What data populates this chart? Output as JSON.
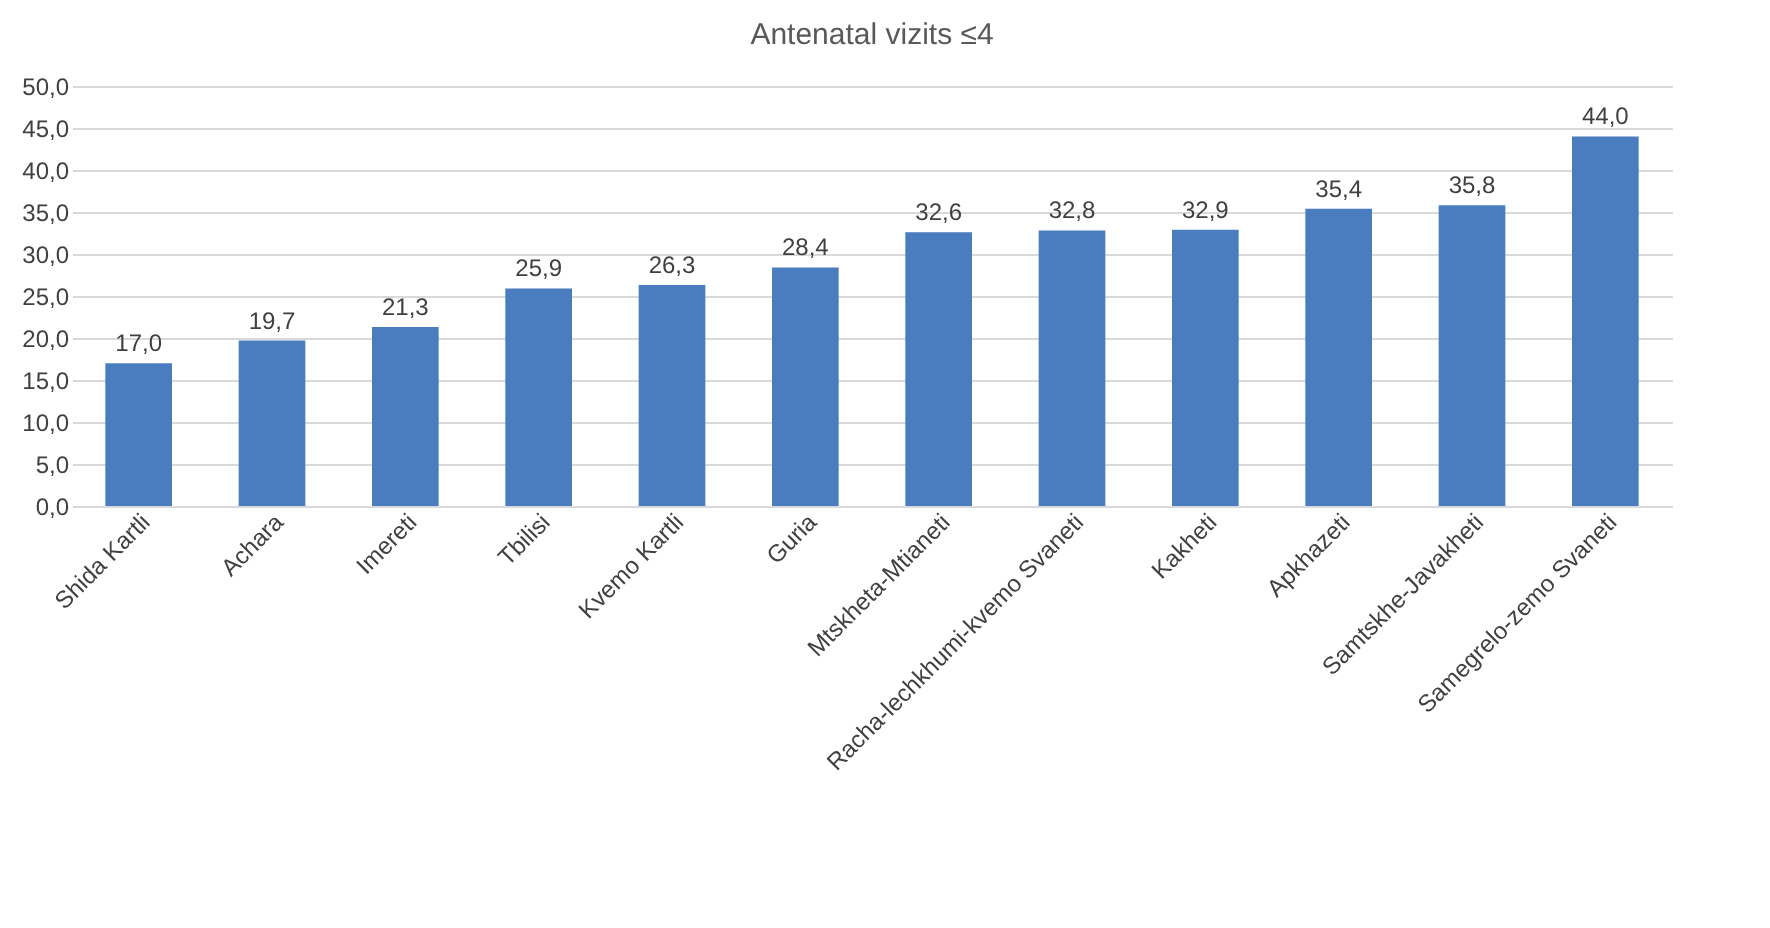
{
  "chart_data": {
    "type": "bar",
    "title": "Antenatal vizits ≤4",
    "categories": [
      "Shida Kartli",
      "Achara",
      "Imereti",
      "Tbilisi",
      "Kvemo Kartli",
      "Guria",
      "Mtskheta-Mtianeti",
      "Racha-lechkhumi-kvemo Svaneti",
      "Kakheti",
      "Apkhazeti",
      "Samtskhe-Javakheti",
      "Samegrelo-zemo Svaneti"
    ],
    "values": [
      17.0,
      19.7,
      21.3,
      25.9,
      26.3,
      28.4,
      32.6,
      32.8,
      32.9,
      35.4,
      35.8,
      44.0
    ],
    "value_labels": [
      "17,0",
      "19,7",
      "21,3",
      "25,9",
      "26,3",
      "28,4",
      "32,6",
      "32,8",
      "32,9",
      "35,4",
      "35,8",
      "44,0"
    ],
    "color": "#4a7cc0",
    "ylim": [
      0,
      50
    ],
    "yticks": [
      {
        "value": 0,
        "label": "0,0"
      },
      {
        "value": 5,
        "label": "5,0"
      },
      {
        "value": 10,
        "label": "10,0"
      },
      {
        "value": 15,
        "label": "15,0"
      },
      {
        "value": 20,
        "label": "20,0"
      },
      {
        "value": 25,
        "label": "25,0"
      },
      {
        "value": 30,
        "label": "30,0"
      },
      {
        "value": 35,
        "label": "35,0"
      },
      {
        "value": 40,
        "label": "40,0"
      },
      {
        "value": 45,
        "label": "45,0"
      },
      {
        "value": 50,
        "label": "50,0"
      }
    ],
    "grid": "y"
  }
}
